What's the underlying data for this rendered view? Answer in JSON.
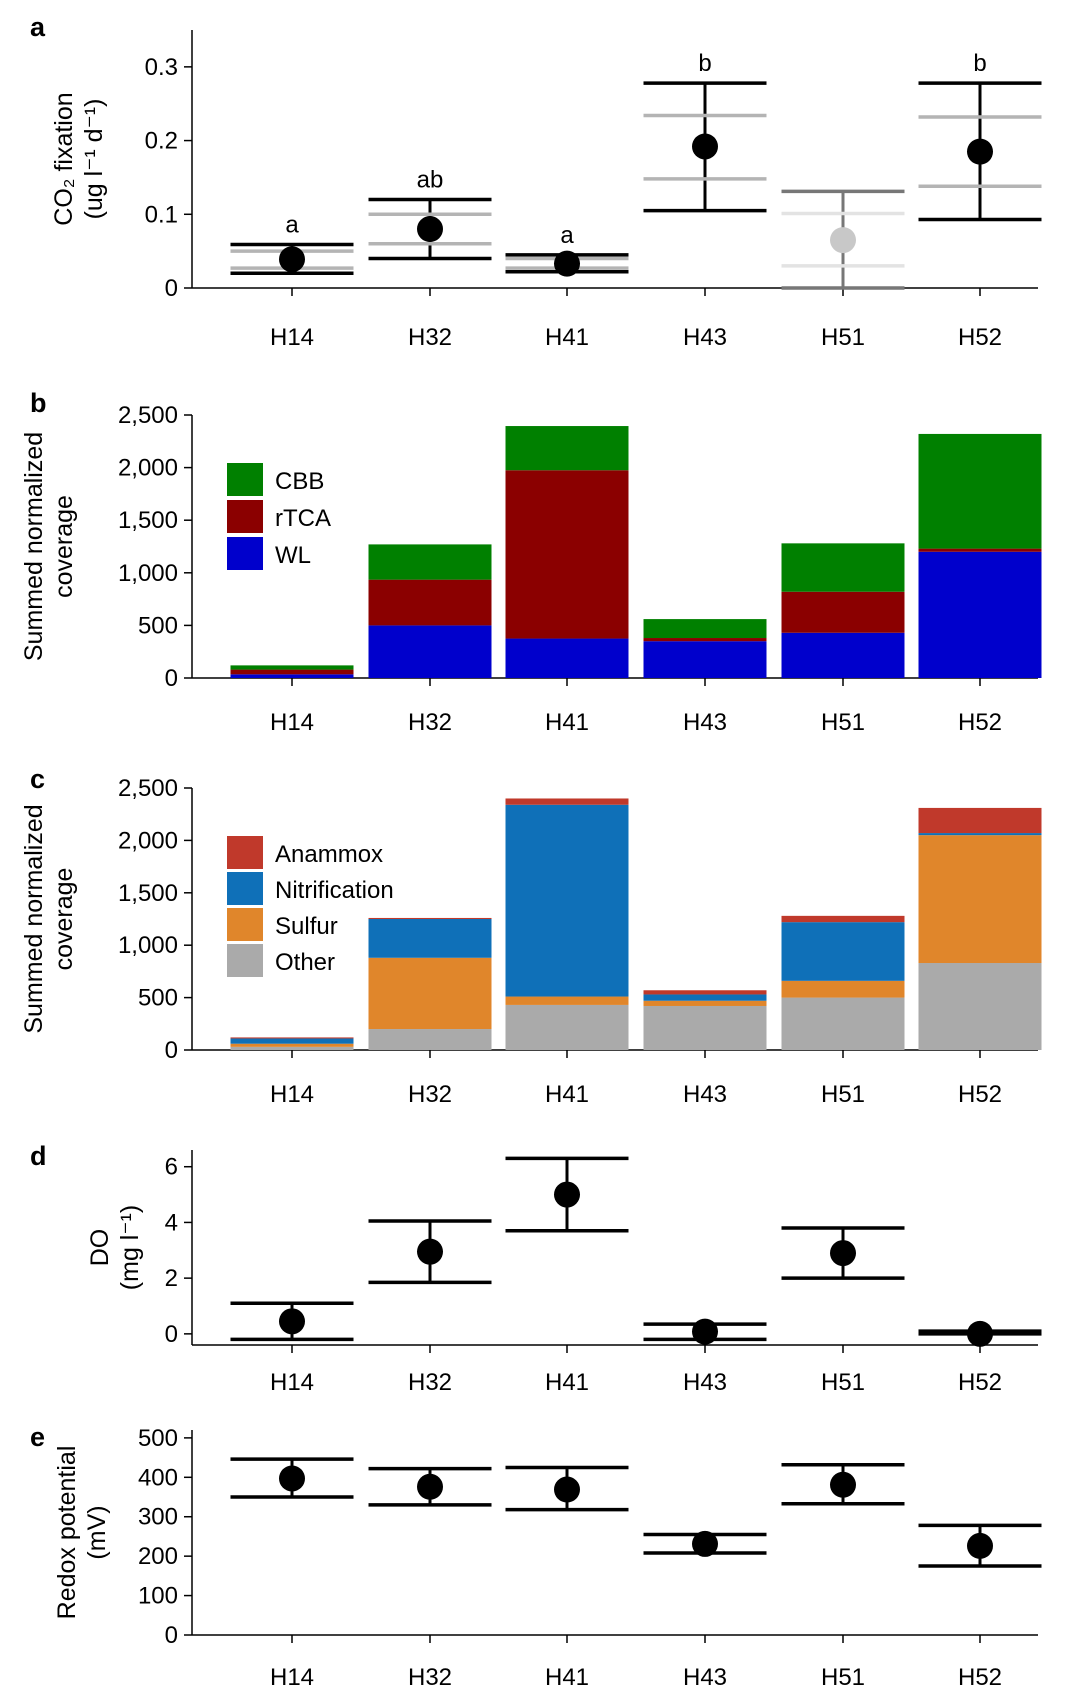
{
  "chart_data": [
    {
      "panel": "a",
      "type": "scatter",
      "ylabel_line1": "CO₂ fixation",
      "ylabel_line2": "(ug l⁻¹ d⁻¹)",
      "categories": [
        "H14",
        "H32",
        "H41",
        "H43",
        "H51",
        "H52"
      ],
      "ylim": [
        0,
        0.35
      ],
      "yticks": [
        0,
        0.1,
        0.2,
        0.3
      ],
      "ytick_labels": [
        "0",
        "0.1",
        "0.2",
        "0.3"
      ],
      "values": [
        0.039,
        0.08,
        0.033,
        0.192,
        0.065,
        0.185
      ],
      "error_low": [
        0.02,
        0.04,
        0.022,
        0.105,
        0.0,
        0.093
      ],
      "error_high": [
        0.059,
        0.12,
        0.045,
        0.278,
        0.131,
        0.278
      ],
      "inner_low": [
        0.027,
        0.06,
        0.027,
        0.148,
        0.03,
        0.138
      ],
      "inner_high": [
        0.05,
        0.1,
        0.04,
        0.234,
        0.101,
        0.232
      ],
      "point_colors": [
        "#000000",
        "#000000",
        "#000000",
        "#000000",
        "#c8c8c8",
        "#000000"
      ],
      "bar_colors": [
        "#000000",
        "#000000",
        "#000000",
        "#000000",
        "#777777",
        "#000000"
      ],
      "inner_colors": [
        "#b4b4b4",
        "#b4b4b4",
        "#b4b4b4",
        "#b4b4b4",
        "#e3e3e3",
        "#b4b4b4"
      ],
      "significance": [
        "a",
        "ab",
        "a",
        "b",
        "",
        "b"
      ]
    },
    {
      "panel": "b",
      "type": "bar",
      "stacked": true,
      "ylabel_line1": "Summed normalized",
      "ylabel_line2": "coverage",
      "categories": [
        "H14",
        "H32",
        "H41",
        "H43",
        "H51",
        "H52"
      ],
      "ylim": [
        0,
        2500
      ],
      "yticks": [
        0,
        500,
        1000,
        1500,
        2000,
        2500
      ],
      "ytick_labels": [
        "0",
        "500",
        "1,000",
        "1,500",
        "2,000",
        "2,500"
      ],
      "series": [
        {
          "name": "WL",
          "color": "#0000cc",
          "values": [
            35,
            500,
            375,
            350,
            430,
            1200
          ]
        },
        {
          "name": "rTCA",
          "color": "#8b0000",
          "values": [
            45,
            435,
            1600,
            30,
            390,
            30
          ]
        },
        {
          "name": "CBB",
          "color": "#008000",
          "values": [
            40,
            335,
            420,
            180,
            460,
            1090
          ]
        }
      ],
      "legend": [
        "CBB",
        "rTCA",
        "WL"
      ],
      "legend_position": "top-left"
    },
    {
      "panel": "c",
      "type": "bar",
      "stacked": true,
      "ylabel_line1": "Summed normalized",
      "ylabel_line2": "coverage",
      "categories": [
        "H14",
        "H32",
        "H41",
        "H43",
        "H51",
        "H52"
      ],
      "ylim": [
        0,
        2500
      ],
      "yticks": [
        0,
        500,
        1000,
        1500,
        2000,
        2500
      ],
      "ytick_labels": [
        "0",
        "500",
        "1,000",
        "1,500",
        "2,000",
        "2,500"
      ],
      "series": [
        {
          "name": "Other",
          "color": "#aaaaaa",
          "values": [
            30,
            200,
            430,
            420,
            500,
            830
          ]
        },
        {
          "name": "Sulfur",
          "color": "#e0862b",
          "values": [
            30,
            680,
            80,
            50,
            160,
            1220
          ]
        },
        {
          "name": "Nitrification",
          "color": "#0f70b8",
          "values": [
            50,
            370,
            1830,
            60,
            560,
            20
          ]
        },
        {
          "name": "Anammox",
          "color": "#c0392b",
          "values": [
            10,
            10,
            60,
            40,
            60,
            240
          ]
        }
      ],
      "legend": [
        "Anammox",
        "Nitrification",
        "Sulfur",
        "Other"
      ],
      "legend_position": "top-left"
    },
    {
      "panel": "d",
      "type": "scatter",
      "ylabel_line1": "DO",
      "ylabel_line2": "(mg l⁻¹)",
      "categories": [
        "H14",
        "H32",
        "H41",
        "H43",
        "H51",
        "H52"
      ],
      "ylim": [
        -0.4,
        6.6
      ],
      "yticks": [
        0,
        2,
        4,
        6
      ],
      "ytick_labels": [
        "0",
        "2",
        "4",
        "6"
      ],
      "values": [
        0.45,
        2.95,
        5.0,
        0.08,
        2.9,
        0.0
      ],
      "error_low": [
        -0.2,
        1.85,
        3.7,
        -0.2,
        2.0,
        0.0
      ],
      "error_high": [
        1.1,
        4.05,
        6.3,
        0.35,
        3.8,
        0.1
      ]
    },
    {
      "panel": "e",
      "type": "scatter",
      "ylabel_line1": "Redox potential",
      "ylabel_line2": "(mV)",
      "categories": [
        "H14",
        "H32",
        "H41",
        "H43",
        "H51",
        "H52"
      ],
      "ylim": [
        0,
        520
      ],
      "yticks": [
        0,
        100,
        200,
        300,
        400,
        500
      ],
      "ytick_labels": [
        "0",
        "100",
        "200",
        "300",
        "400",
        "500"
      ],
      "values": [
        397,
        376,
        369,
        231,
        381,
        226
      ],
      "error_low": [
        350,
        330,
        318,
        208,
        333,
        175
      ],
      "error_high": [
        446,
        422,
        425,
        255,
        432,
        278
      ]
    }
  ]
}
